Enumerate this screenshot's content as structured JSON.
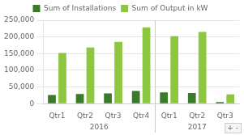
{
  "chart_data": {
    "type": "bar",
    "categories": [
      "Qtr1",
      "Qtr2",
      "Qtr3",
      "Qtr4",
      "Qtr1",
      "Qtr2",
      "Qtr3"
    ],
    "series": [
      {
        "name": "Sum of Installations",
        "color": "#3a7a2a",
        "values": [
          26000,
          29000,
          31000,
          38000,
          34000,
          32000,
          5000
        ]
      },
      {
        "name": "Sum of Output in kW",
        "color": "#8dc63f",
        "values": [
          152000,
          168000,
          185000,
          228000,
          202000,
          215000,
          28000
        ]
      }
    ],
    "ylim": [
      0,
      250000
    ],
    "yticks": [
      0,
      {
        "value": 50000,
        "label": "50,000"
      },
      {
        "value": 100000,
        "label": "100,000"
      },
      {
        "value": 150000,
        "label": "150,000"
      },
      {
        "value": 200000,
        "label": "200,000"
      },
      {
        "value": 250000,
        "label": "250,000"
      }
    ],
    "annotations": [
      "2016",
      "2017",
      "+ -"
    ],
    "grid": true,
    "legend": "top"
  }
}
